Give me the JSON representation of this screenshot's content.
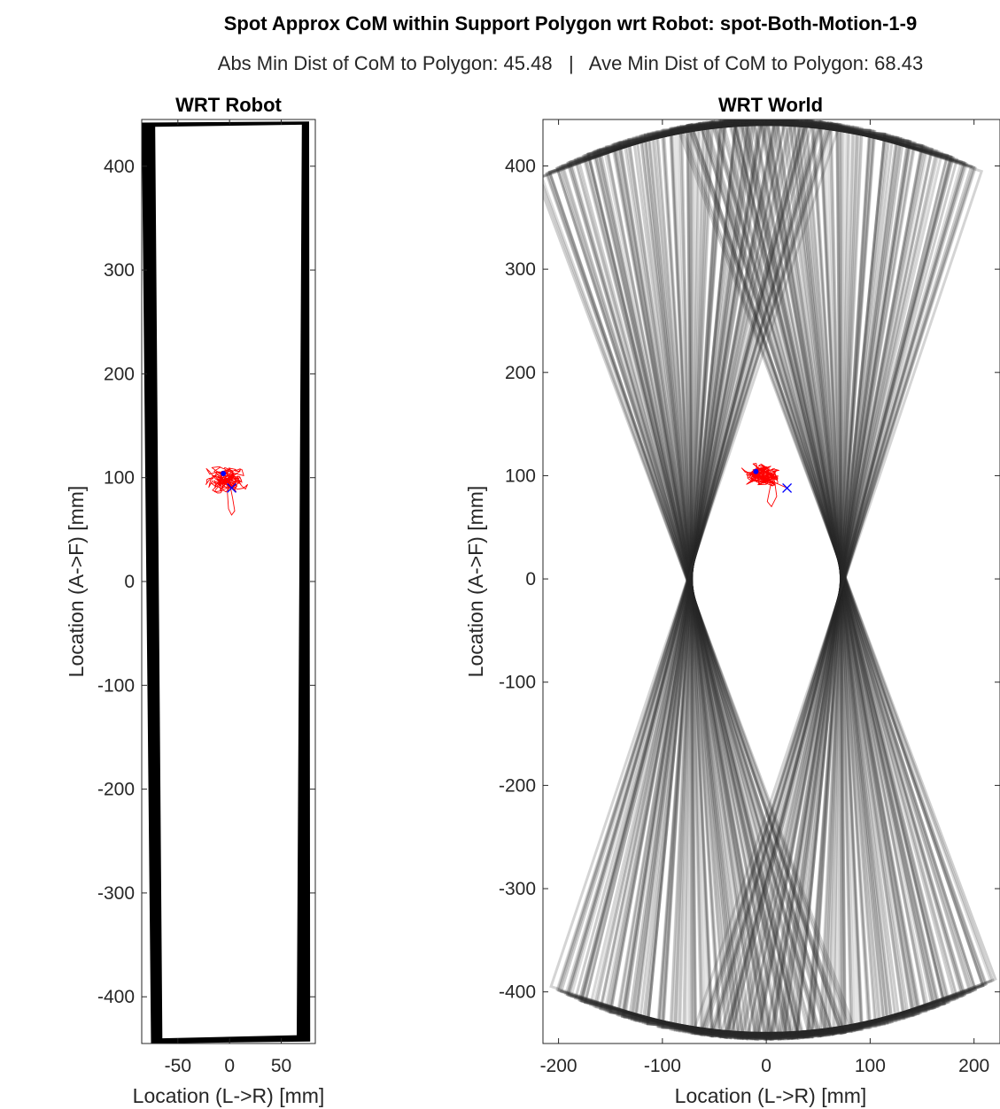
{
  "figure": {
    "title": "Spot Approx CoM within Support Polygon wrt Robot: spot-Both-Motion-1-9",
    "subtitle": "Abs Min Dist of CoM to Polygon: 45.48   |   Ave Min Dist of CoM to Polygon: 68.43"
  },
  "chart_data": [
    {
      "type": "line",
      "title": "WRT Robot",
      "xlabel": "Location (L->R) [mm]",
      "ylabel": "Location (A->F) [mm]",
      "xlim": [
        -85,
        83
      ],
      "ylim": [
        -445,
        445
      ],
      "xticks": [
        -50,
        0,
        50
      ],
      "yticks": [
        -400,
        -300,
        -200,
        -100,
        0,
        100,
        200,
        300,
        400
      ],
      "grid": false,
      "support_polygon_color": "#000000",
      "com_trace_color": "#ff0000",
      "marker_color": "#0000ff",
      "support_polygon": {
        "outer": [
          [
            -85,
            442
          ],
          [
            77,
            443
          ],
          [
            78,
            -443
          ],
          [
            -76,
            -445
          ]
        ],
        "inner": [
          [
            -72,
            438
          ],
          [
            70,
            440
          ],
          [
            65,
            -437
          ],
          [
            -65,
            -440
          ]
        ]
      },
      "com_start": [
        -6,
        104
      ],
      "com_end": [
        2,
        90
      ],
      "com_center": [
        -5,
        98
      ]
    },
    {
      "type": "line",
      "title": "WRT World",
      "xlabel": "Location (L->R) [mm]",
      "ylabel": "Location (A->F) [mm]",
      "xlim": [
        -215,
        225
      ],
      "ylim": [
        -450,
        445
      ],
      "xticks": [
        -200,
        -100,
        0,
        100,
        200
      ],
      "yticks": [
        -400,
        -300,
        -200,
        -100,
        0,
        100,
        200,
        300,
        400
      ],
      "grid": false,
      "support_polygon_color": "#2a2a2a",
      "com_trace_color": "#ff0000",
      "marker_color": "#0000ff",
      "com_start": [
        -10,
        104
      ],
      "com_end": [
        20,
        88
      ],
      "com_center": [
        -2,
        100
      ]
    }
  ]
}
